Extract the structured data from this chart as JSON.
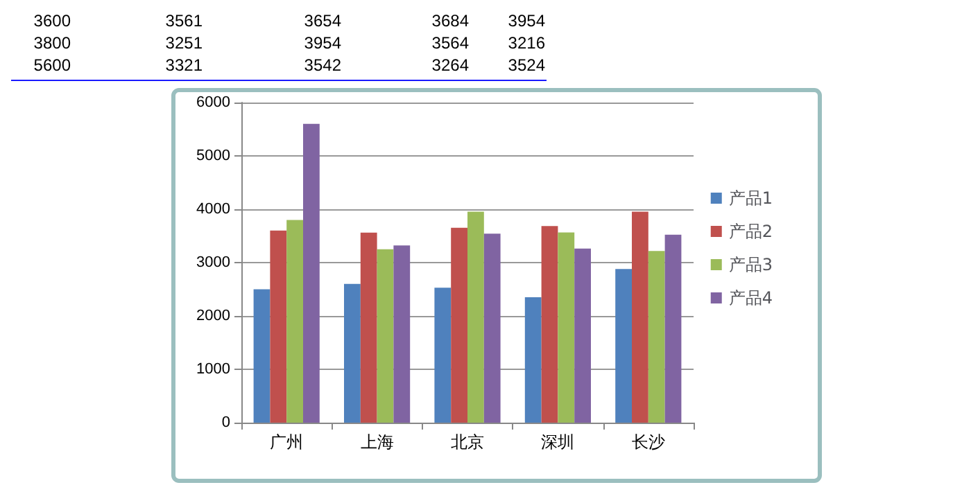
{
  "chart_data": {
    "type": "bar",
    "categories": [
      "广州",
      "上海",
      "北京",
      "深圳",
      "长沙"
    ],
    "series": [
      {
        "name": "产品1",
        "color": "#4f81bd",
        "values": [
          2500,
          2600,
          2530,
          2350,
          2880
        ]
      },
      {
        "name": "产品2",
        "color": "#c0504d",
        "values": [
          3600,
          3561,
          3654,
          3684,
          3954
        ]
      },
      {
        "name": "产品3",
        "color": "#9bbb59",
        "values": [
          3800,
          3251,
          3954,
          3564,
          3216
        ]
      },
      {
        "name": "产品4",
        "color": "#8064a2",
        "values": [
          5600,
          3321,
          3542,
          3264,
          3524
        ]
      }
    ],
    "ylim": [
      0,
      6000
    ],
    "yticks": [
      0,
      1000,
      2000,
      3000,
      4000,
      5000,
      6000
    ],
    "grid": "y",
    "legend": "right",
    "annotations": [
      "3600 3561 3654 3684 3954",
      "3800 3251 3954 3564 3216",
      "5600 3321 3542 3264 3524"
    ]
  }
}
